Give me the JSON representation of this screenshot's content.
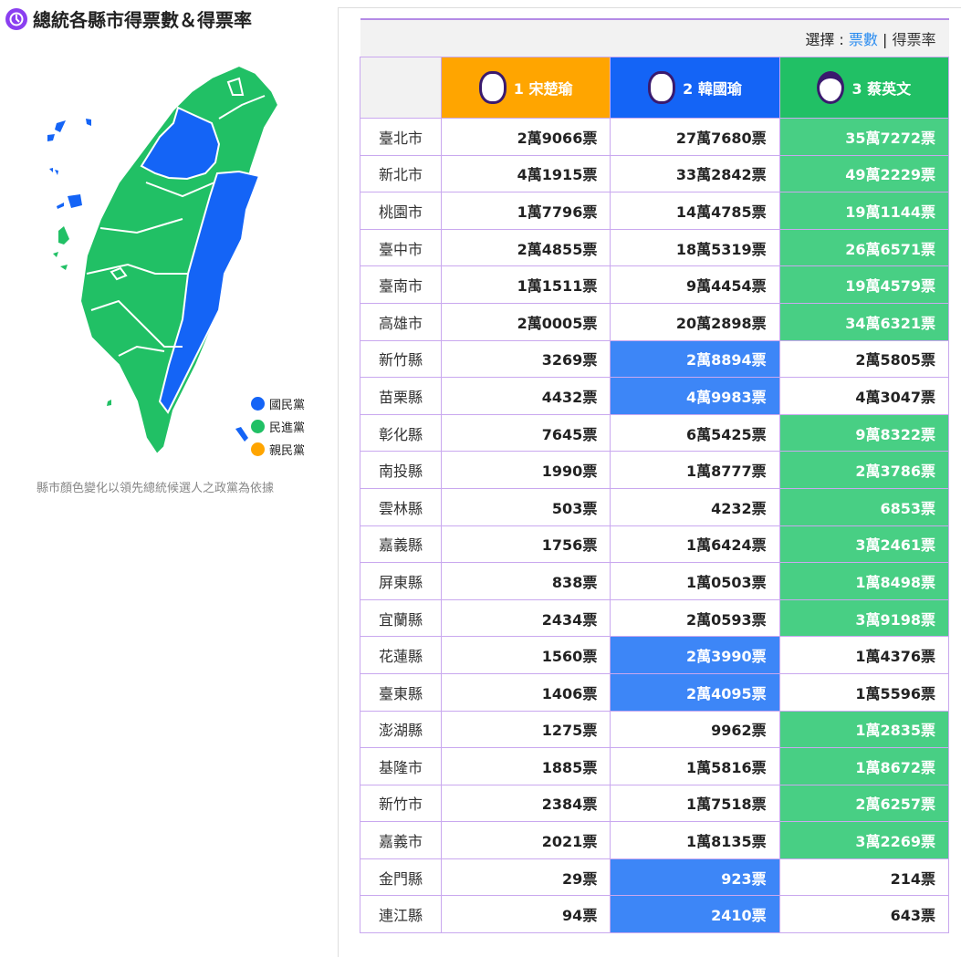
{
  "title": "總統各縣市得票數＆得票率",
  "legend": [
    {
      "label": "國民黨",
      "color": "#1464f6"
    },
    {
      "label": "民進黨",
      "color": "#21c065"
    },
    {
      "label": "親民黨",
      "color": "#ffa500"
    }
  ],
  "note": "縣市顏色變化以領先總統候選人之政黨為依據",
  "selector": {
    "label": "選擇 : ",
    "votes": "票數",
    "sep": "|",
    "rate": "得票率"
  },
  "candidates": [
    {
      "label": "1 宋楚瑜",
      "color": "#ffa500"
    },
    {
      "label": "2 韓國瑜",
      "color": "#1464f6"
    },
    {
      "label": "3 蔡英文",
      "color": "#21c065"
    }
  ],
  "highlight_colors": {
    "dpp": "#48cf84",
    "kmt": "#3d86f7"
  },
  "rows": [
    {
      "name": "臺北市",
      "v": [
        "2萬9066票",
        "27萬7680票",
        "35萬7272票"
      ],
      "winner": 2
    },
    {
      "name": "新北市",
      "v": [
        "4萬1915票",
        "33萬2842票",
        "49萬2229票"
      ],
      "winner": 2
    },
    {
      "name": "桃園市",
      "v": [
        "1萬7796票",
        "14萬4785票",
        "19萬1144票"
      ],
      "winner": 2
    },
    {
      "name": "臺中市",
      "v": [
        "2萬4855票",
        "18萬5319票",
        "26萬6571票"
      ],
      "winner": 2
    },
    {
      "name": "臺南市",
      "v": [
        "1萬1511票",
        "9萬4454票",
        "19萬4579票"
      ],
      "winner": 2
    },
    {
      "name": "高雄市",
      "v": [
        "2萬0005票",
        "20萬2898票",
        "34萬6321票"
      ],
      "winner": 2
    },
    {
      "name": "新竹縣",
      "v": [
        "3269票",
        "2萬8894票",
        "2萬5805票"
      ],
      "winner": 1
    },
    {
      "name": "苗栗縣",
      "v": [
        "4432票",
        "4萬9983票",
        "4萬3047票"
      ],
      "winner": 1
    },
    {
      "name": "彰化縣",
      "v": [
        "7645票",
        "6萬5425票",
        "9萬8322票"
      ],
      "winner": 2
    },
    {
      "name": "南投縣",
      "v": [
        "1990票",
        "1萬8777票",
        "2萬3786票"
      ],
      "winner": 2
    },
    {
      "name": "雲林縣",
      "v": [
        "503票",
        "4232票",
        "6853票"
      ],
      "winner": 2
    },
    {
      "name": "嘉義縣",
      "v": [
        "1756票",
        "1萬6424票",
        "3萬2461票"
      ],
      "winner": 2
    },
    {
      "name": "屏東縣",
      "v": [
        "838票",
        "1萬0503票",
        "1萬8498票"
      ],
      "winner": 2
    },
    {
      "name": "宜蘭縣",
      "v": [
        "2434票",
        "2萬0593票",
        "3萬9198票"
      ],
      "winner": 2
    },
    {
      "name": "花蓮縣",
      "v": [
        "1560票",
        "2萬3990票",
        "1萬4376票"
      ],
      "winner": 1
    },
    {
      "name": "臺東縣",
      "v": [
        "1406票",
        "2萬4095票",
        "1萬5596票"
      ],
      "winner": 1
    },
    {
      "name": "澎湖縣",
      "v": [
        "1275票",
        "9962票",
        "1萬2835票"
      ],
      "winner": 2
    },
    {
      "name": "基隆市",
      "v": [
        "1885票",
        "1萬5816票",
        "1萬8672票"
      ],
      "winner": 2
    },
    {
      "name": "新竹市",
      "v": [
        "2384票",
        "1萬7518票",
        "2萬6257票"
      ],
      "winner": 2
    },
    {
      "name": "嘉義市",
      "v": [
        "2021票",
        "1萬8135票",
        "3萬2269票"
      ],
      "winner": 2
    },
    {
      "name": "金門縣",
      "v": [
        "29票",
        "923票",
        "214票"
      ],
      "winner": 1
    },
    {
      "name": "連江縣",
      "v": [
        "94票",
        "2410票",
        "643票"
      ],
      "winner": 1
    }
  ]
}
